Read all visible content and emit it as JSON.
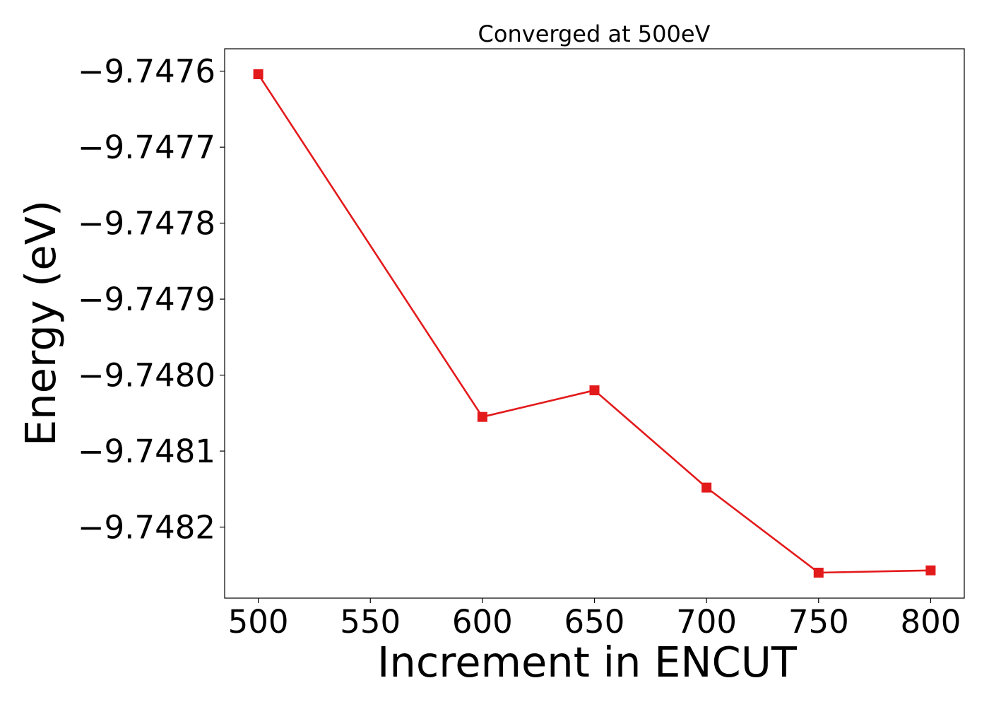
{
  "chart_data": {
    "type": "line",
    "title": "Converged at 500eV",
    "xlabel": "Increment in ENCUT",
    "ylabel": "Energy (eV)",
    "x": [
      500,
      600,
      650,
      700,
      750,
      800
    ],
    "series": [
      {
        "values": [
          -9.747604,
          -9.748055,
          -9.74802,
          -9.748148,
          -9.74826,
          -9.748257
        ],
        "color": "#e31a1c",
        "marker": "square"
      }
    ],
    "xlim": [
      485,
      815
    ],
    "ylim": [
      -9.7482935,
      -9.7475705
    ],
    "xticks": [
      500,
      550,
      600,
      650,
      700,
      750,
      800
    ],
    "xtick_labels": [
      "500",
      "550",
      "600",
      "650",
      "700",
      "750",
      "800"
    ],
    "yticks": [
      -9.7476,
      -9.7477,
      -9.7478,
      -9.7479,
      -9.748,
      -9.7481,
      -9.7482
    ],
    "ytick_labels": [
      "−9.7476",
      "−9.7477",
      "−9.7478",
      "−9.7479",
      "−9.7480",
      "−9.7481",
      "−9.7482"
    ],
    "grid": false,
    "legend": false
  }
}
